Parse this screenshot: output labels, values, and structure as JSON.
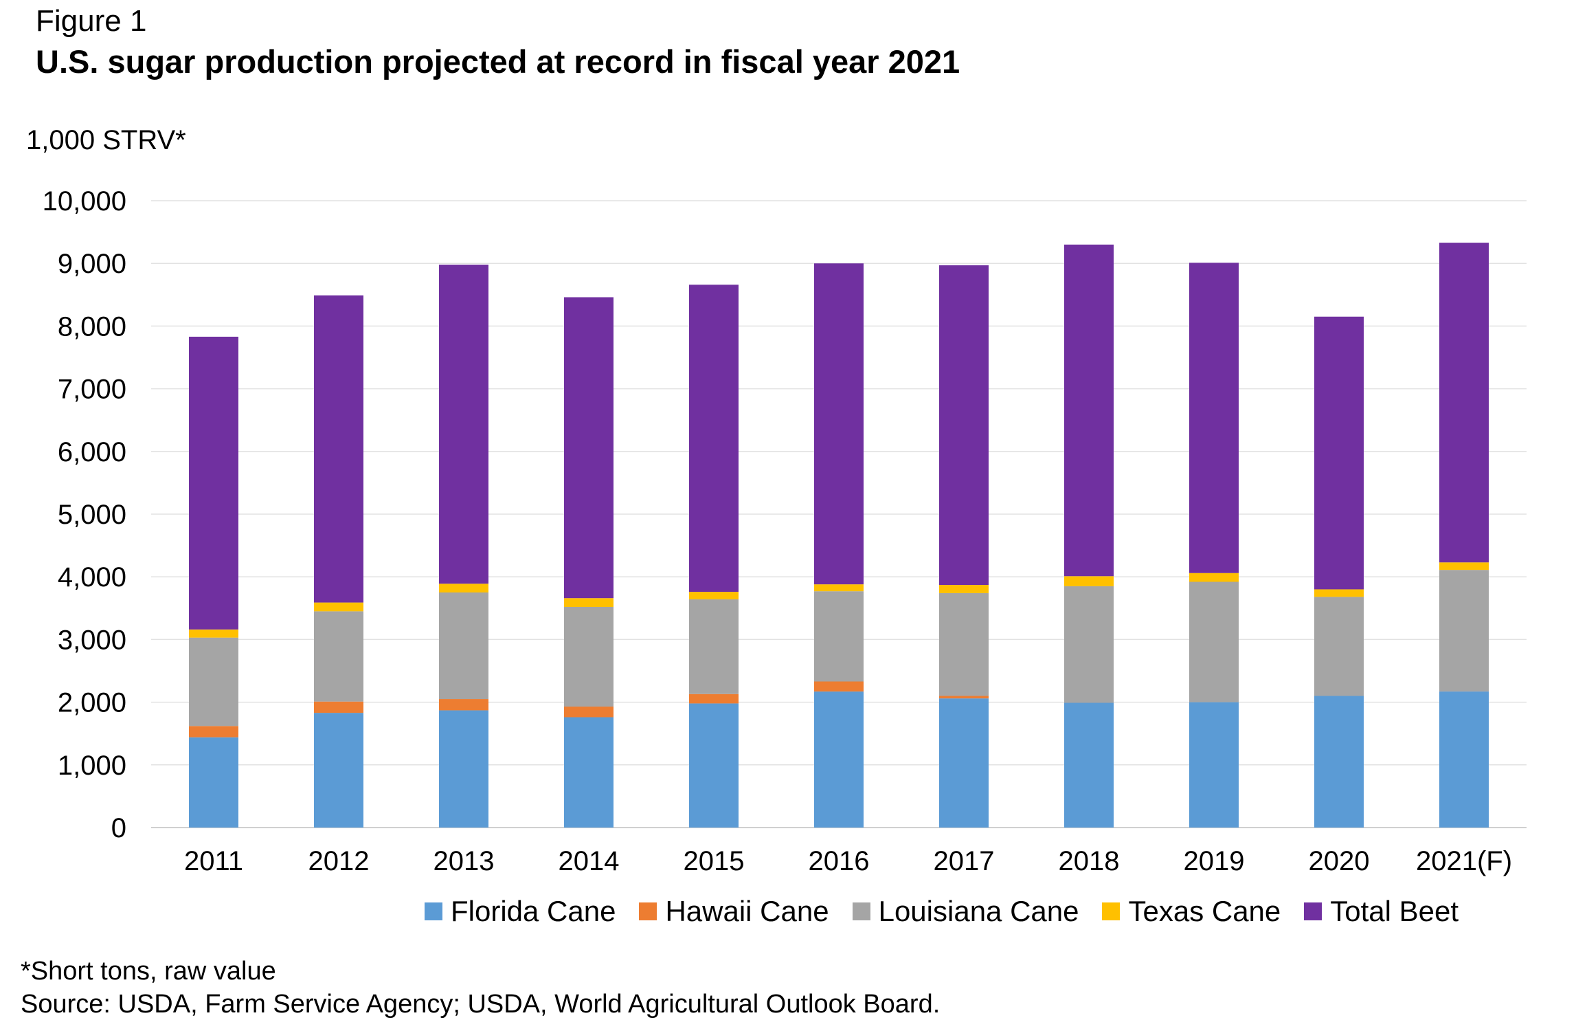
{
  "figure_label": "Figure 1",
  "title": "U.S. sugar production projected at record in fiscal year 2021",
  "footnote": "*Short tons, raw value",
  "source": "Source: USDA, Farm Service Agency; USDA, World Agricultural Outlook Board.",
  "chart_data": {
    "type": "bar",
    "stacked": true,
    "title": "U.S. sugar production projected at record in fiscal year 2021",
    "ylabel": "1,000 STRV*",
    "xlabel": "",
    "ylim": [
      0,
      10000
    ],
    "yticks": [
      0,
      1000,
      2000,
      3000,
      4000,
      5000,
      6000,
      7000,
      8000,
      9000,
      10000
    ],
    "ytick_labels": [
      "0",
      "1,000",
      "2,000",
      "3,000",
      "4,000",
      "5,000",
      "6,000",
      "7,000",
      "8,000",
      "9,000",
      "10,000"
    ],
    "grid": true,
    "legend_position": "bottom",
    "categories": [
      "2011",
      "2012",
      "2013",
      "2014",
      "2015",
      "2016",
      "2017",
      "2018",
      "2019",
      "2020",
      "2021(F)"
    ],
    "series": [
      {
        "name": "Florida Cane",
        "color": "#5B9BD5",
        "values": [
          1440,
          1830,
          1870,
          1760,
          1980,
          2170,
          2060,
          1990,
          2000,
          2100,
          2170
        ]
      },
      {
        "name": "Hawaii Cane",
        "color": "#ED7D31",
        "values": [
          180,
          180,
          180,
          170,
          150,
          160,
          40,
          0,
          0,
          0,
          0
        ]
      },
      {
        "name": "Louisiana Cane",
        "color": "#A5A5A5",
        "values": [
          1410,
          1440,
          1700,
          1590,
          1510,
          1440,
          1640,
          1860,
          1920,
          1580,
          1940
        ]
      },
      {
        "name": "Texas Cane",
        "color": "#FFC000",
        "values": [
          130,
          140,
          140,
          140,
          120,
          110,
          130,
          160,
          140,
          120,
          120
        ]
      },
      {
        "name": "Total Beet",
        "color": "#7030A0",
        "values": [
          4670,
          4900,
          5090,
          4800,
          4900,
          5120,
          5100,
          5290,
          4950,
          4350,
          5100
        ]
      }
    ]
  }
}
